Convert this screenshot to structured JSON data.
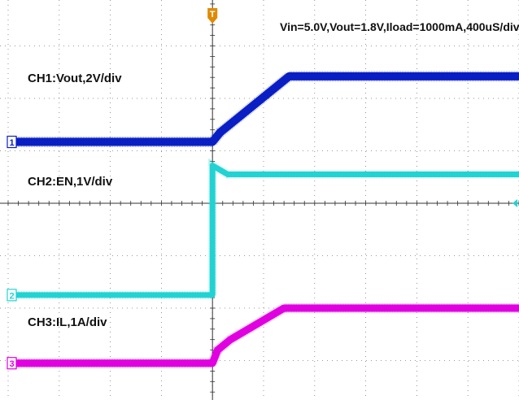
{
  "chart_data": {
    "type": "line",
    "title": "",
    "annotation": "Vin=5.0V,Vout=1.8V,Iload=1000mA,400uS/div",
    "grid": true,
    "grid_divisions": {
      "x": 10,
      "y": 8
    },
    "x_unit": "div",
    "xlim": [
      0,
      10
    ],
    "trigger": {
      "label": "T",
      "x": 4.0,
      "color": "#e08a00"
    },
    "series": [
      {
        "name": "CH1:Vout,2V/div",
        "marker": "1",
        "color": "#0a1fc4",
        "x": [
          0,
          4.0,
          4.15,
          5.5,
          10
        ],
        "y": [
          5.17,
          5.17,
          5.35,
          6.42,
          6.42
        ]
      },
      {
        "name": "CH2:EN,1V/div",
        "marker": "2",
        "color": "#22d3d3",
        "x": [
          0,
          4.0,
          4.0,
          4.3,
          10
        ],
        "y": [
          2.25,
          2.25,
          4.72,
          4.55,
          4.55
        ]
      },
      {
        "name": "CH3:IL,1A/div",
        "marker": "3",
        "color": "#e000e0",
        "x": [
          0,
          4.0,
          4.1,
          4.35,
          5.4,
          10
        ],
        "y": [
          0.95,
          0.95,
          1.2,
          1.4,
          2.0,
          2.0
        ]
      }
    ]
  }
}
